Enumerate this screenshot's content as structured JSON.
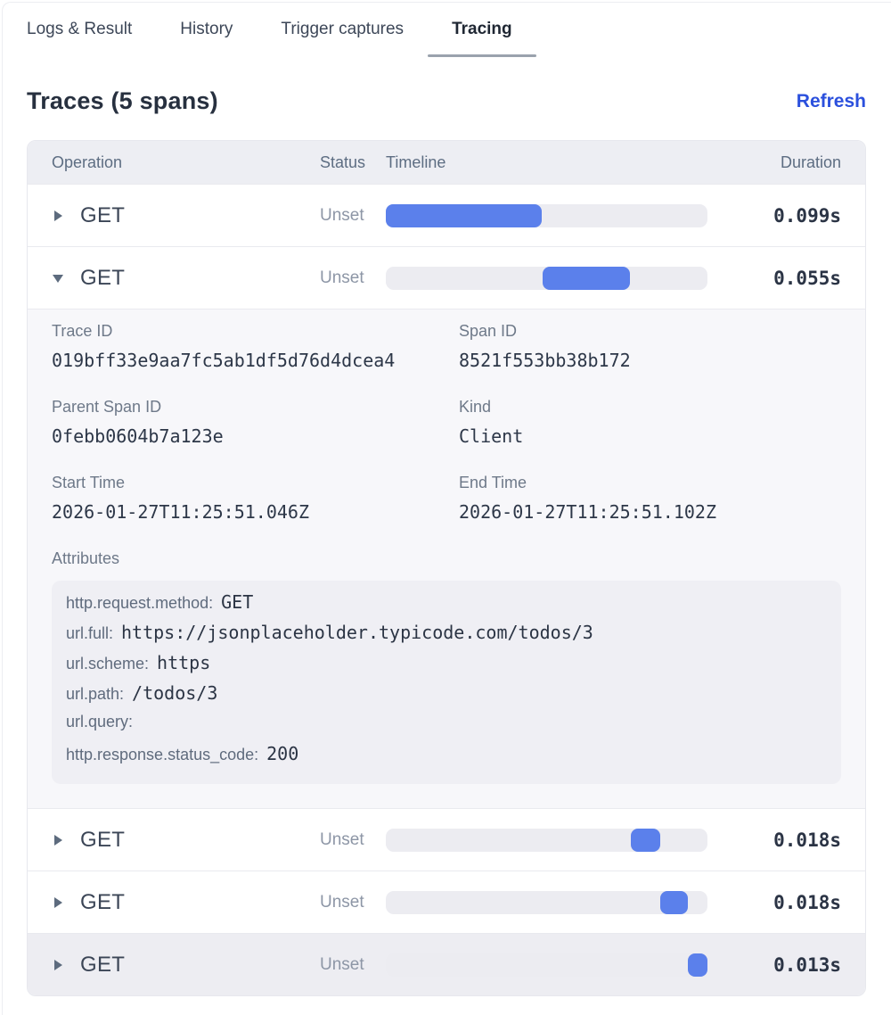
{
  "tabs": [
    {
      "label": "Logs & Result",
      "active": false
    },
    {
      "label": "History",
      "active": false
    },
    {
      "label": "Trigger captures",
      "active": false
    },
    {
      "label": "Tracing",
      "active": true
    }
  ],
  "header": {
    "title": "Traces (5 spans)",
    "refresh_label": "Refresh"
  },
  "table": {
    "columns": {
      "operation": "Operation",
      "status": "Status",
      "timeline": "Timeline",
      "duration": "Duration"
    },
    "rows": [
      {
        "operation": "GET",
        "status": "Unset",
        "duration": "0.099s",
        "bar": {
          "left_pct": 0,
          "width_pct": 48.5
        },
        "expanded": false,
        "highlighted": false
      },
      {
        "operation": "GET",
        "status": "Unset",
        "duration": "0.055s",
        "bar": {
          "left_pct": 48.8,
          "width_pct": 27.1
        },
        "expanded": true,
        "highlighted": false
      },
      {
        "operation": "GET",
        "status": "Unset",
        "duration": "0.018s",
        "bar": {
          "left_pct": 76.2,
          "width_pct": 9.1
        },
        "expanded": false,
        "highlighted": false
      },
      {
        "operation": "GET",
        "status": "Unset",
        "duration": "0.018s",
        "bar": {
          "left_pct": 85.3,
          "width_pct": 8.6
        },
        "expanded": false,
        "highlighted": false
      },
      {
        "operation": "GET",
        "status": "Unset",
        "duration": "0.013s",
        "bar": {
          "left_pct": 93.9,
          "width_pct": 6.1
        },
        "expanded": false,
        "highlighted": true
      }
    ]
  },
  "details": {
    "fields": [
      {
        "label": "Trace ID",
        "value": "019bff33e9aa7fc5ab1df5d76d4dcea4"
      },
      {
        "label": "Span ID",
        "value": "8521f553bb38b172"
      },
      {
        "label": "Parent Span ID",
        "value": "0febb0604b7a123e"
      },
      {
        "label": "Kind",
        "value": "Client"
      },
      {
        "label": "Start Time",
        "value": "2026-01-27T11:25:51.046Z"
      },
      {
        "label": "End Time",
        "value": "2026-01-27T11:25:51.102Z"
      }
    ],
    "attributes_label": "Attributes",
    "attributes": [
      {
        "key": "http.request.method:",
        "value": "GET"
      },
      {
        "key": "url.full:",
        "value": "https://jsonplaceholder.typicode.com/todos/3"
      },
      {
        "key": "url.scheme:",
        "value": "https"
      },
      {
        "key": "url.path:",
        "value": "/todos/3"
      },
      {
        "key": "url.query:",
        "value": ""
      },
      {
        "key": "http.response.status_code:",
        "value": "200"
      }
    ]
  },
  "colors": {
    "accent_blue": "#5b80eb",
    "refresh_link": "#2b50dd",
    "bar_track": "#ececf1",
    "header_bg": "#edeef3",
    "details_bg": "#f7f7fa",
    "attrs_box_bg": "#efeff4",
    "highlight_row_bg": "#ededf2",
    "active_tab_underline": "#9aa2ad"
  }
}
